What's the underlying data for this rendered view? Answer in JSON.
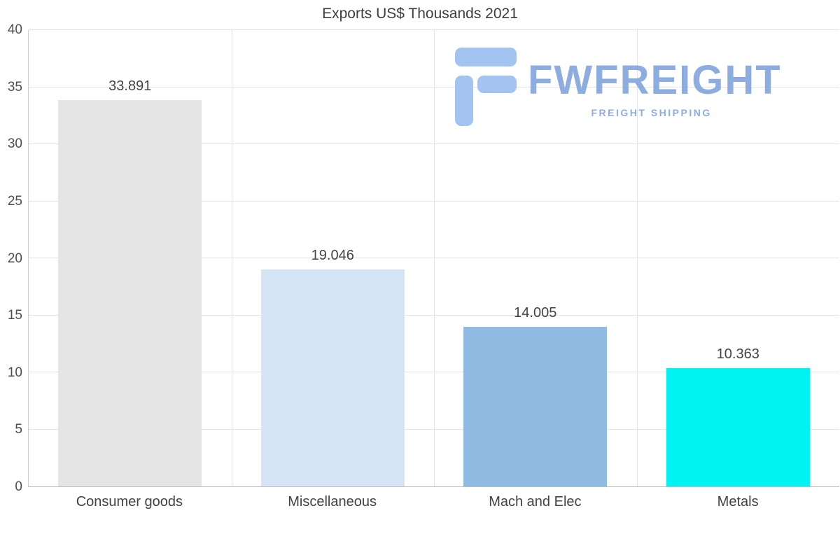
{
  "title": "Exports US$ Thousands 2021",
  "logo": {
    "brand": "FWFREIGHT",
    "tagline": "FREIGHT SHIPPING",
    "glyph_color": "#a3c4f0",
    "text_color": "#84a6dd"
  },
  "chart_data": {
    "type": "bar",
    "title": "Exports US$ Thousands 2021",
    "categories": [
      "Consumer goods",
      "Miscellaneous",
      "Mach and Elec",
      "Metals"
    ],
    "values": [
      33.891,
      19.046,
      14.005,
      10.363
    ],
    "value_labels": [
      "33.891",
      "19.046",
      "14.005",
      "10.363"
    ],
    "bar_colors": [
      "#e5e5e5",
      "#d6e5f6",
      "#90bce3",
      "#00f2f2"
    ],
    "ylim": [
      0,
      40
    ],
    "yticks": [
      0,
      5,
      10,
      15,
      20,
      25,
      30,
      35,
      40
    ],
    "grid": true,
    "legend": false,
    "xlabel": "",
    "ylabel": ""
  }
}
